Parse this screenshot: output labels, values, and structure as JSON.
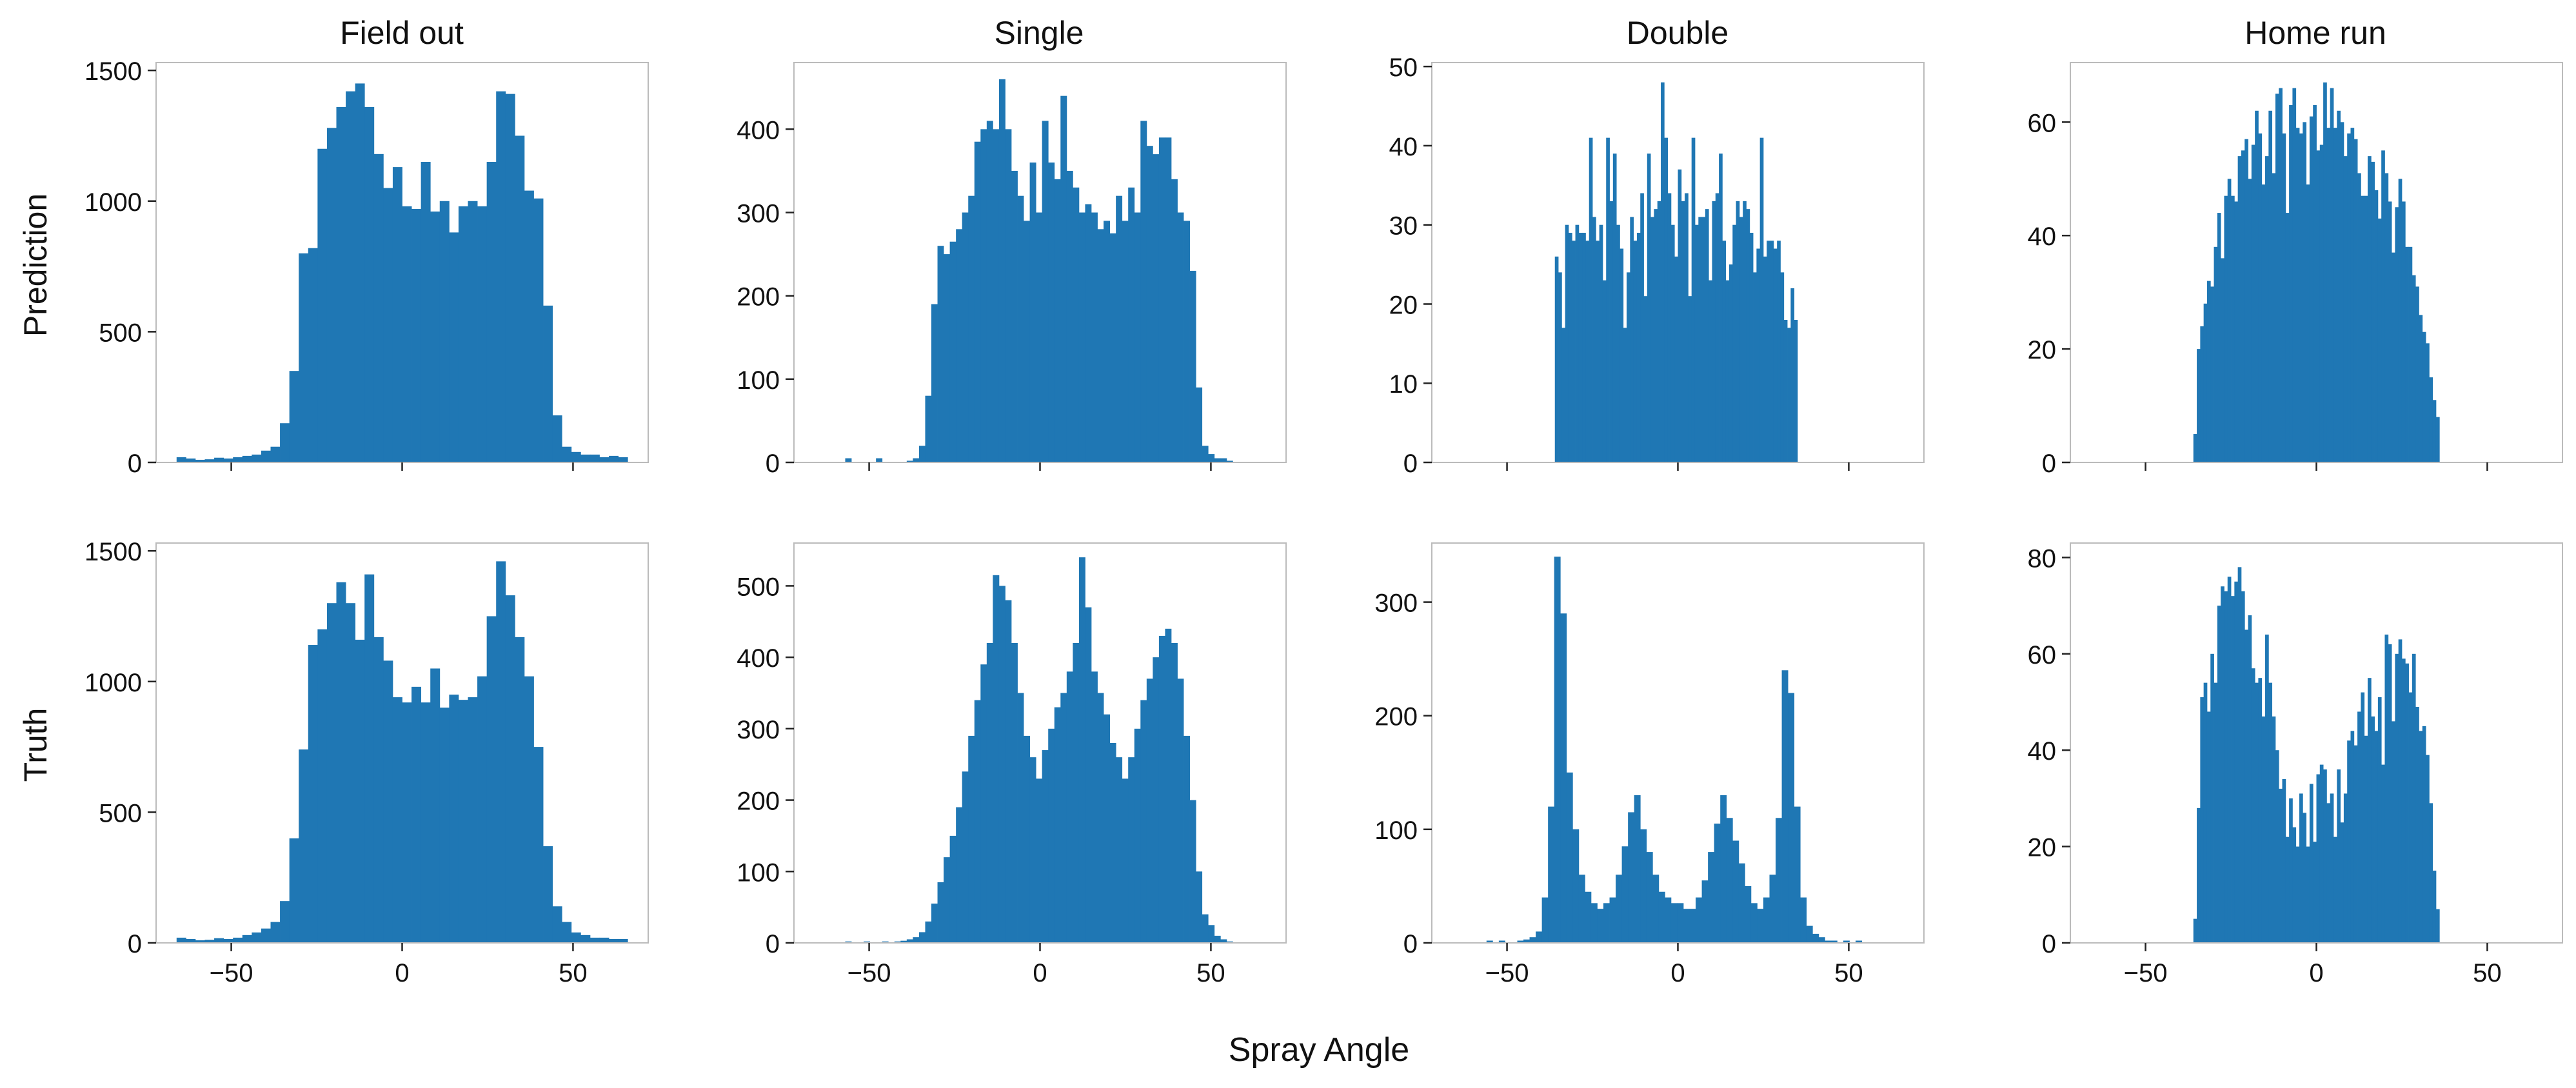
{
  "figure": {
    "xlabel": "Spray Angle",
    "row_labels": [
      "Prediction",
      "Truth"
    ],
    "column_titles": [
      "Field out",
      "Single",
      "Double",
      "Home run"
    ],
    "bar_color": "#1f77b4",
    "frame_color": "#bbbbbb"
  },
  "chart_data": [
    {
      "type": "bar",
      "row": "Prediction",
      "title": "Field out",
      "xlim": [
        -72,
        72
      ],
      "ylim": [
        0,
        1530
      ],
      "xticks": [],
      "yticks": [
        0,
        500,
        1000,
        1500
      ],
      "bins": {
        "start": -66,
        "width": 2.75,
        "count": 48
      },
      "values": [
        20,
        15,
        10,
        12,
        18,
        15,
        20,
        25,
        30,
        45,
        60,
        150,
        350,
        800,
        820,
        1200,
        1280,
        1360,
        1420,
        1450,
        1360,
        1180,
        1050,
        1130,
        980,
        970,
        1150,
        960,
        1000,
        880,
        980,
        1000,
        980,
        1150,
        1420,
        1410,
        1250,
        1040,
        1010,
        600,
        180,
        60,
        40,
        30,
        30,
        20,
        25,
        20
      ]
    },
    {
      "type": "bar",
      "row": "Prediction",
      "title": "Single",
      "xlim": [
        -72,
        72
      ],
      "ylim": [
        0,
        480
      ],
      "xticks": [],
      "yticks": [
        0,
        100,
        200,
        300,
        400
      ],
      "bins": {
        "start": -66,
        "width": 1.8,
        "count": 75
      },
      "values": [
        0,
        0,
        0,
        0,
        0,
        5,
        0,
        0,
        0,
        0,
        5,
        0,
        0,
        0,
        0,
        2,
        5,
        20,
        80,
        190,
        260,
        250,
        265,
        280,
        300,
        320,
        385,
        400,
        410,
        400,
        460,
        400,
        350,
        320,
        290,
        360,
        300,
        410,
        360,
        340,
        440,
        350,
        330,
        300,
        310,
        300,
        280,
        290,
        275,
        320,
        290,
        330,
        300,
        410,
        380,
        370,
        390,
        390,
        340,
        300,
        290,
        230,
        90,
        20,
        10,
        5,
        5,
        2,
        0,
        0,
        0,
        0,
        0,
        0,
        0
      ]
    },
    {
      "type": "bar",
      "row": "Prediction",
      "title": "Double",
      "xlim": [
        -72,
        72
      ],
      "ylim": [
        0,
        50.5
      ],
      "xticks": [],
      "yticks": [
        0,
        10,
        20,
        30,
        40,
        50
      ],
      "bins": {
        "start": -36,
        "width": 1,
        "count": 72
      },
      "values": [
        26,
        24,
        17,
        30,
        29,
        28,
        30,
        29,
        29,
        28,
        41,
        31,
        28,
        30,
        23,
        41,
        33,
        39,
        30,
        27,
        17,
        24,
        31,
        28,
        29,
        34,
        21,
        39,
        31,
        32,
        33,
        48,
        41,
        34,
        30,
        26,
        37,
        33,
        34,
        21,
        41,
        30,
        31,
        31,
        32,
        23,
        33,
        34,
        39,
        28,
        23,
        25,
        30,
        33,
        31,
        33,
        32,
        29,
        24,
        27,
        41,
        26,
        28,
        28,
        27,
        28,
        24,
        18,
        17,
        22,
        18,
        0
      ]
    },
    {
      "type": "bar",
      "row": "Prediction",
      "title": "Home run",
      "xlim": [
        -72,
        72
      ],
      "ylim": [
        0,
        70.5
      ],
      "xticks": [],
      "yticks": [
        0,
        20,
        40,
        60
      ],
      "bins": {
        "start": -36,
        "width": 1,
        "count": 73
      },
      "values": [
        5,
        20,
        24,
        28,
        32,
        31,
        38,
        44,
        36,
        47,
        50,
        47,
        46,
        54,
        55,
        57,
        50,
        56,
        62,
        58,
        49,
        54,
        62,
        51,
        65,
        66,
        58,
        44,
        63,
        66,
        59,
        58,
        60,
        49,
        61,
        63,
        55,
        56,
        67,
        59,
        66,
        59,
        62,
        60,
        54,
        58,
        59,
        57,
        51,
        47,
        47,
        54,
        53,
        48,
        43,
        55,
        51,
        46,
        37,
        45,
        50,
        46,
        38,
        38,
        33,
        31,
        26,
        23,
        21,
        15,
        11,
        8,
        0
      ]
    },
    {
      "type": "bar",
      "row": "Truth",
      "title": "Field out",
      "xlim": [
        -72,
        72
      ],
      "ylim": [
        0,
        1530
      ],
      "xticks": [
        -50,
        0,
        50
      ],
      "yticks": [
        0,
        500,
        1000,
        1500
      ],
      "bins": {
        "start": -66,
        "width": 2.75,
        "count": 48
      },
      "values": [
        20,
        15,
        10,
        12,
        18,
        15,
        20,
        30,
        40,
        55,
        80,
        160,
        400,
        740,
        1140,
        1200,
        1300,
        1380,
        1300,
        1160,
        1410,
        1170,
        1080,
        940,
        920,
        980,
        920,
        1050,
        900,
        950,
        930,
        940,
        1020,
        1250,
        1460,
        1330,
        1170,
        1020,
        750,
        370,
        140,
        80,
        40,
        30,
        20,
        20,
        15,
        15
      ]
    },
    {
      "type": "bar",
      "row": "Truth",
      "title": "Single",
      "xlim": [
        -72,
        72
      ],
      "ylim": [
        0,
        560
      ],
      "xticks": [
        -50,
        0,
        50
      ],
      "yticks": [
        0,
        100,
        200,
        300,
        400,
        500
      ],
      "bins": {
        "start": -66,
        "width": 1.8,
        "count": 75
      },
      "values": [
        0,
        0,
        0,
        0,
        0,
        2,
        0,
        0,
        2,
        0,
        0,
        2,
        0,
        2,
        3,
        5,
        8,
        15,
        30,
        55,
        85,
        120,
        150,
        190,
        240,
        290,
        340,
        390,
        420,
        515,
        500,
        480,
        420,
        350,
        290,
        260,
        230,
        270,
        300,
        330,
        350,
        380,
        420,
        540,
        470,
        380,
        350,
        320,
        280,
        260,
        230,
        260,
        300,
        340,
        370,
        400,
        430,
        440,
        420,
        370,
        290,
        200,
        100,
        40,
        25,
        10,
        5,
        2,
        0,
        0,
        0,
        0,
        0,
        0,
        0
      ]
    },
    {
      "type": "bar",
      "row": "Truth",
      "title": "Double",
      "xlim": [
        -72,
        72
      ],
      "ylim": [
        0,
        352
      ],
      "xticks": [
        -50,
        0,
        50
      ],
      "yticks": [
        0,
        100,
        200,
        300
      ],
      "bins": {
        "start": -56,
        "width": 1.8,
        "count": 62
      },
      "values": [
        2,
        0,
        2,
        0,
        0,
        2,
        3,
        5,
        10,
        40,
        120,
        340,
        290,
        150,
        100,
        60,
        45,
        35,
        30,
        35,
        40,
        60,
        85,
        115,
        130,
        100,
        80,
        60,
        45,
        40,
        35,
        35,
        30,
        30,
        40,
        55,
        80,
        105,
        130,
        110,
        90,
        70,
        50,
        35,
        30,
        40,
        60,
        110,
        240,
        220,
        120,
        40,
        15,
        8,
        5,
        2,
        2,
        0,
        2,
        0,
        2,
        0
      ]
    },
    {
      "type": "bar",
      "row": "Truth",
      "title": "Home run",
      "xlim": [
        -72,
        72
      ],
      "ylim": [
        0,
        83
      ],
      "xticks": [
        -50,
        0,
        50
      ],
      "yticks": [
        0,
        20,
        40,
        60,
        80
      ],
      "bins": {
        "start": -36,
        "width": 1,
        "count": 73
      },
      "values": [
        5,
        28,
        51,
        54,
        48,
        60,
        54,
        70,
        74,
        73,
        76,
        72,
        75,
        78,
        73,
        65,
        68,
        57,
        54,
        55,
        47,
        64,
        54,
        47,
        40,
        32,
        34,
        22,
        30,
        24,
        20,
        31,
        27,
        20,
        33,
        21,
        35,
        37,
        36,
        29,
        31,
        22,
        36,
        25,
        31,
        42,
        44,
        41,
        48,
        52,
        43,
        55,
        47,
        44,
        51,
        37,
        64,
        62,
        46,
        60,
        63,
        59,
        58,
        52,
        60,
        49,
        44,
        45,
        39,
        29,
        15,
        7,
        0
      ]
    }
  ]
}
